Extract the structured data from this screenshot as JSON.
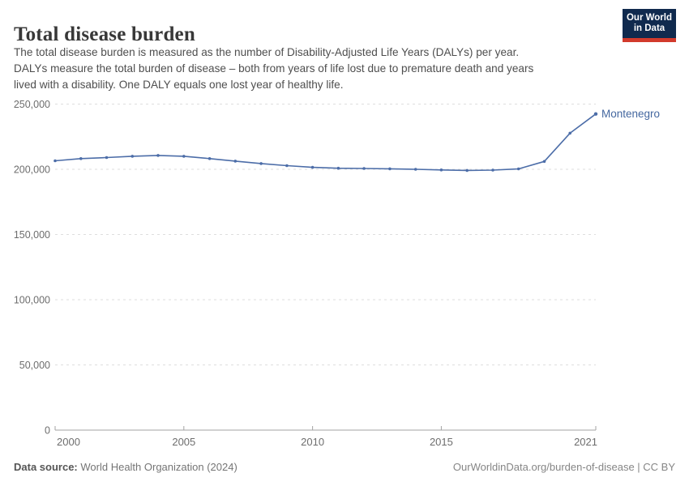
{
  "header": {
    "title": "Total disease burden",
    "subtitle_lines": [
      "The total disease burden is measured as the number of Disability-Adjusted Life Years (DALYs) per year.",
      "DALYs measure the total burden of disease – both from years of life lost due to premature death and years",
      "lived with a disability. One DALY equals one lost year of healthy life."
    ],
    "logo": {
      "line1": "Our World",
      "line2": "in Data"
    }
  },
  "chart_data": {
    "type": "line",
    "title": "Total disease burden",
    "ylabel": "",
    "xlabel": "",
    "entity_label": "Montenegro",
    "x": [
      2000,
      2001,
      2002,
      2003,
      2004,
      2005,
      2006,
      2007,
      2008,
      2009,
      2010,
      2011,
      2012,
      2013,
      2014,
      2015,
      2016,
      2017,
      2018,
      2019,
      2020,
      2021
    ],
    "series": [
      {
        "name": "Montenegro",
        "values": [
          206500,
          208200,
          209000,
          210000,
          210600,
          210000,
          208200,
          206300,
          204400,
          202800,
          201500,
          200800,
          200600,
          200400,
          200000,
          199500,
          199100,
          199400,
          200300,
          206000,
          227700,
          242400
        ]
      }
    ],
    "xlim": [
      2000,
      2021
    ],
    "ylim": [
      0,
      250000
    ],
    "x_ticks": [
      {
        "value": 2000,
        "label": "2000"
      },
      {
        "value": 2005,
        "label": "2005"
      },
      {
        "value": 2010,
        "label": "2010"
      },
      {
        "value": 2015,
        "label": "2015"
      },
      {
        "value": 2021,
        "label": "2021"
      }
    ],
    "y_ticks": [
      {
        "value": 0,
        "label": "0"
      },
      {
        "value": 50000,
        "label": "50,000"
      },
      {
        "value": 100000,
        "label": "100,000"
      },
      {
        "value": 150000,
        "label": "150,000"
      },
      {
        "value": 200000,
        "label": "200,000"
      },
      {
        "value": 250000,
        "label": "250,000"
      }
    ],
    "grid": "horizontal-dashed",
    "legend_position": "end-of-line"
  },
  "colors": {
    "line": "#4c6da8",
    "entity_label": "#44679f",
    "gridline": "#dedede",
    "axis": "#a3a3a3",
    "tick_label": "#6d6d6d",
    "logo_bg": "#102a4e",
    "logo_accent": "#d23a2c"
  },
  "footer": {
    "source_label": "Data source:",
    "source_value": "World Health Organization (2024)",
    "attribution": "OurWorldinData.org/burden-of-disease | CC BY"
  }
}
